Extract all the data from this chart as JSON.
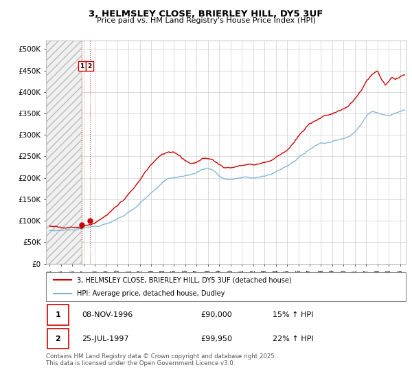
{
  "title": "3, HELMSLEY CLOSE, BRIERLEY HILL, DY5 3UF",
  "subtitle": "Price paid vs. HM Land Registry's House Price Index (HPI)",
  "ylabel_ticks": [
    "£0",
    "£50K",
    "£100K",
    "£150K",
    "£200K",
    "£250K",
    "£300K",
    "£350K",
    "£400K",
    "£450K",
    "£500K"
  ],
  "ytick_values": [
    0,
    50000,
    100000,
    150000,
    200000,
    250000,
    300000,
    350000,
    400000,
    450000,
    500000
  ],
  "ylim": [
    0,
    520000
  ],
  "xlim_start": 1993.7,
  "xlim_end": 2025.5,
  "hpi_color": "#7bafd4",
  "price_color": "#cc0000",
  "purchase_dates": [
    1996.86,
    1997.56
  ],
  "purchase_prices": [
    90000,
    99950
  ],
  "purchase_labels": [
    "1",
    "2"
  ],
  "annotation_box_color": "#cc0000",
  "vline_color": "#cc0000",
  "legend_label_price": "3, HELMSLEY CLOSE, BRIERLEY HILL, DY5 3UF (detached house)",
  "legend_label_hpi": "HPI: Average price, detached house, Dudley",
  "table_rows": [
    {
      "num": "1",
      "date": "08-NOV-1996",
      "price": "£90,000",
      "hpi": "15% ↑ HPI"
    },
    {
      "num": "2",
      "date": "25-JUL-1997",
      "price": "£99,950",
      "hpi": "22% ↑ HPI"
    }
  ],
  "footer": "Contains HM Land Registry data © Crown copyright and database right 2025.\nThis data is licensed under the Open Government Licence v3.0.",
  "grid_color": "#cccccc",
  "hpi_knots": [
    [
      1994.0,
      77000
    ],
    [
      1994.5,
      77500
    ],
    [
      1995.0,
      78000
    ],
    [
      1995.5,
      79000
    ],
    [
      1996.0,
      80000
    ],
    [
      1996.5,
      82000
    ],
    [
      1997.0,
      84000
    ],
    [
      1997.5,
      86000
    ],
    [
      1998.0,
      88000
    ],
    [
      1998.5,
      90000
    ],
    [
      1999.0,
      93000
    ],
    [
      1999.5,
      97000
    ],
    [
      2000.0,
      102000
    ],
    [
      2000.5,
      108000
    ],
    [
      2001.0,
      116000
    ],
    [
      2001.5,
      124000
    ],
    [
      2002.0,
      135000
    ],
    [
      2002.5,
      148000
    ],
    [
      2003.0,
      163000
    ],
    [
      2003.5,
      176000
    ],
    [
      2004.0,
      188000
    ],
    [
      2004.5,
      196000
    ],
    [
      2005.0,
      198000
    ],
    [
      2005.5,
      200000
    ],
    [
      2006.0,
      202000
    ],
    [
      2006.5,
      205000
    ],
    [
      2007.0,
      210000
    ],
    [
      2007.5,
      218000
    ],
    [
      2008.0,
      220000
    ],
    [
      2008.5,
      215000
    ],
    [
      2009.0,
      200000
    ],
    [
      2009.5,
      193000
    ],
    [
      2010.0,
      192000
    ],
    [
      2010.5,
      194000
    ],
    [
      2011.0,
      195000
    ],
    [
      2011.5,
      196000
    ],
    [
      2012.0,
      196000
    ],
    [
      2012.5,
      197000
    ],
    [
      2013.0,
      198000
    ],
    [
      2013.5,
      202000
    ],
    [
      2014.0,
      208000
    ],
    [
      2014.5,
      215000
    ],
    [
      2015.0,
      222000
    ],
    [
      2015.5,
      232000
    ],
    [
      2016.0,
      242000
    ],
    [
      2016.5,
      252000
    ],
    [
      2017.0,
      262000
    ],
    [
      2017.5,
      272000
    ],
    [
      2018.0,
      278000
    ],
    [
      2018.5,
      280000
    ],
    [
      2019.0,
      283000
    ],
    [
      2019.5,
      286000
    ],
    [
      2020.0,
      288000
    ],
    [
      2020.5,
      295000
    ],
    [
      2021.0,
      308000
    ],
    [
      2021.5,
      323000
    ],
    [
      2022.0,
      342000
    ],
    [
      2022.5,
      355000
    ],
    [
      2023.0,
      352000
    ],
    [
      2023.5,
      348000
    ],
    [
      2024.0,
      345000
    ],
    [
      2024.5,
      350000
    ],
    [
      2025.0,
      355000
    ],
    [
      2025.4,
      358000
    ]
  ],
  "price_knots": [
    [
      1994.0,
      88000
    ],
    [
      1994.5,
      88500
    ],
    [
      1995.0,
      89000
    ],
    [
      1995.5,
      89500
    ],
    [
      1996.0,
      90000
    ],
    [
      1996.5,
      91000
    ],
    [
      1996.86,
      90000
    ],
    [
      1997.0,
      95000
    ],
    [
      1997.56,
      99950
    ],
    [
      1998.0,
      104000
    ],
    [
      1998.5,
      110000
    ],
    [
      1999.0,
      118000
    ],
    [
      1999.5,
      127000
    ],
    [
      2000.0,
      137000
    ],
    [
      2000.5,
      150000
    ],
    [
      2001.0,
      164000
    ],
    [
      2001.5,
      178000
    ],
    [
      2002.0,
      195000
    ],
    [
      2002.5,
      215000
    ],
    [
      2003.0,
      232000
    ],
    [
      2003.5,
      245000
    ],
    [
      2004.0,
      254000
    ],
    [
      2004.5,
      260000
    ],
    [
      2005.0,
      262000
    ],
    [
      2005.5,
      255000
    ],
    [
      2006.0,
      245000
    ],
    [
      2006.5,
      240000
    ],
    [
      2007.0,
      242000
    ],
    [
      2007.5,
      248000
    ],
    [
      2008.0,
      250000
    ],
    [
      2008.5,
      248000
    ],
    [
      2009.0,
      238000
    ],
    [
      2009.5,
      232000
    ],
    [
      2010.0,
      232000
    ],
    [
      2010.5,
      234000
    ],
    [
      2011.0,
      237000
    ],
    [
      2011.5,
      240000
    ],
    [
      2012.0,
      240000
    ],
    [
      2012.5,
      242000
    ],
    [
      2013.0,
      246000
    ],
    [
      2013.5,
      250000
    ],
    [
      2014.0,
      258000
    ],
    [
      2014.5,
      268000
    ],
    [
      2015.0,
      278000
    ],
    [
      2015.5,
      292000
    ],
    [
      2016.0,
      308000
    ],
    [
      2016.5,
      322000
    ],
    [
      2017.0,
      335000
    ],
    [
      2017.5,
      345000
    ],
    [
      2018.0,
      352000
    ],
    [
      2018.5,
      358000
    ],
    [
      2019.0,
      362000
    ],
    [
      2019.5,
      368000
    ],
    [
      2020.0,
      372000
    ],
    [
      2020.5,
      380000
    ],
    [
      2021.0,
      395000
    ],
    [
      2021.5,
      412000
    ],
    [
      2022.0,
      432000
    ],
    [
      2022.5,
      448000
    ],
    [
      2023.0,
      455000
    ],
    [
      2023.3,
      435000
    ],
    [
      2023.7,
      420000
    ],
    [
      2024.0,
      430000
    ],
    [
      2024.3,
      438000
    ],
    [
      2024.6,
      430000
    ],
    [
      2025.0,
      435000
    ],
    [
      2025.4,
      440000
    ]
  ]
}
